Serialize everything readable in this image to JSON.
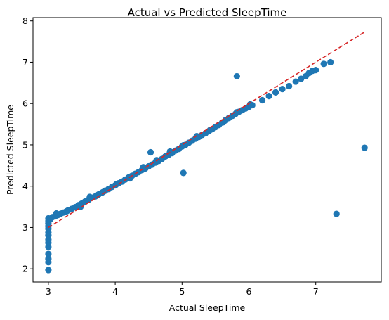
{
  "chart_data": {
    "type": "scatter",
    "title": "Actual vs Predicted SleepTime",
    "xlabel": "Actual SleepTime",
    "ylabel": "Predicted SleepTime",
    "xlim": [
      2.77,
      7.98
    ],
    "ylim": [
      1.68,
      8.08
    ],
    "xticks": [
      3,
      4,
      5,
      6,
      7
    ],
    "yticks": [
      2,
      3,
      4,
      5,
      6,
      7,
      8
    ],
    "grid": false,
    "legend": "none",
    "marker_color": "#1f77b4",
    "reference_line": {
      "style": "dashed",
      "color": "#d62728",
      "from": [
        3.0,
        3.0
      ],
      "to": [
        7.73,
        7.73
      ]
    },
    "points": [
      [
        3.0,
        1.97
      ],
      [
        3.0,
        2.16
      ],
      [
        3.0,
        2.24
      ],
      [
        3.0,
        2.36
      ],
      [
        3.0,
        2.53
      ],
      [
        3.0,
        2.63
      ],
      [
        3.0,
        2.71
      ],
      [
        3.0,
        2.81
      ],
      [
        3.0,
        2.88
      ],
      [
        3.0,
        2.97
      ],
      [
        3.0,
        3.03
      ],
      [
        3.0,
        3.1
      ],
      [
        3.0,
        3.16
      ],
      [
        3.0,
        3.22
      ],
      [
        3.03,
        3.2
      ],
      [
        3.06,
        3.25
      ],
      [
        3.1,
        3.27
      ],
      [
        3.14,
        3.3
      ],
      [
        3.18,
        3.33
      ],
      [
        3.22,
        3.36
      ],
      [
        3.26,
        3.38
      ],
      [
        3.3,
        3.42
      ],
      [
        3.35,
        3.45
      ],
      [
        3.4,
        3.49
      ],
      [
        3.45,
        3.54
      ],
      [
        3.5,
        3.58
      ],
      [
        3.55,
        3.63
      ],
      [
        3.6,
        3.67
      ],
      [
        3.65,
        3.72
      ],
      [
        3.7,
        3.75
      ],
      [
        3.75,
        3.8
      ],
      [
        3.8,
        3.84
      ],
      [
        3.85,
        3.89
      ],
      [
        3.9,
        3.93
      ],
      [
        3.95,
        3.98
      ],
      [
        4.0,
        4.02
      ],
      [
        4.05,
        4.07
      ],
      [
        4.1,
        4.11
      ],
      [
        4.15,
        4.16
      ],
      [
        4.2,
        4.21
      ],
      [
        4.25,
        4.25
      ],
      [
        4.3,
        4.3
      ],
      [
        4.35,
        4.34
      ],
      [
        4.4,
        4.39
      ],
      [
        4.45,
        4.43
      ],
      [
        4.5,
        4.48
      ],
      [
        4.55,
        4.52
      ],
      [
        4.6,
        4.57
      ],
      [
        4.65,
        4.61
      ],
      [
        4.7,
        4.66
      ],
      [
        4.75,
        4.72
      ],
      [
        4.8,
        4.76
      ],
      [
        4.85,
        4.8
      ],
      [
        4.9,
        4.86
      ],
      [
        4.95,
        4.9
      ],
      [
        5.0,
        4.96
      ],
      [
        5.05,
        5.0
      ],
      [
        5.1,
        5.05
      ],
      [
        5.15,
        5.1
      ],
      [
        5.2,
        5.15
      ],
      [
        5.25,
        5.19
      ],
      [
        5.3,
        5.24
      ],
      [
        5.35,
        5.28
      ],
      [
        5.4,
        5.33
      ],
      [
        5.45,
        5.38
      ],
      [
        5.5,
        5.43
      ],
      [
        5.55,
        5.48
      ],
      [
        5.6,
        5.54
      ],
      [
        5.65,
        5.6
      ],
      [
        5.7,
        5.65
      ],
      [
        5.75,
        5.7
      ],
      [
        5.8,
        5.75
      ],
      [
        5.85,
        5.8
      ],
      [
        5.9,
        5.84
      ],
      [
        5.95,
        5.88
      ],
      [
        6.0,
        5.92
      ],
      [
        6.05,
        5.96
      ],
      [
        6.2,
        6.08
      ],
      [
        6.3,
        6.18
      ],
      [
        6.4,
        6.27
      ],
      [
        6.5,
        6.35
      ],
      [
        6.6,
        6.42
      ],
      [
        6.7,
        6.53
      ],
      [
        6.78,
        6.6
      ],
      [
        6.85,
        6.66
      ],
      [
        6.9,
        6.74
      ],
      [
        6.95,
        6.79
      ],
      [
        7.0,
        6.81
      ],
      [
        7.12,
        6.96
      ],
      [
        7.22,
        7.0
      ],
      [
        4.53,
        4.82
      ],
      [
        5.02,
        4.32
      ],
      [
        5.82,
        6.66
      ],
      [
        7.31,
        3.33
      ],
      [
        7.73,
        4.93
      ],
      [
        3.12,
        3.34
      ],
      [
        3.28,
        3.4
      ],
      [
        3.48,
        3.5
      ],
      [
        3.62,
        3.74
      ],
      [
        3.82,
        3.86
      ],
      [
        4.02,
        4.05
      ],
      [
        4.22,
        4.19
      ],
      [
        4.42,
        4.46
      ],
      [
        4.62,
        4.63
      ],
      [
        4.82,
        4.84
      ],
      [
        5.02,
        4.99
      ],
      [
        5.22,
        5.21
      ],
      [
        5.42,
        5.36
      ],
      [
        5.62,
        5.55
      ],
      [
        5.82,
        5.79
      ],
      [
        6.02,
        5.98
      ]
    ]
  }
}
